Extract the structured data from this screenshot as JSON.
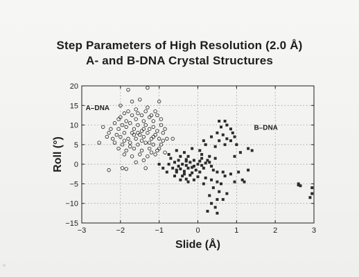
{
  "page": {
    "margin_mark": "¹¹"
  },
  "chart_data": {
    "type": "scatter",
    "title": "Step Parameters of High Resolution (2.0 Å)",
    "subtitle": "A- and B-DNA Crystal Structures",
    "xlabel": "Slide (Å)",
    "ylabel": "Roll (°)",
    "xlim": [
      -3,
      3
    ],
    "ylim": [
      -15,
      20
    ],
    "xticks": [
      -3,
      -2,
      -1,
      0,
      1,
      2,
      3
    ],
    "yticks": [
      -15,
      -10,
      -5,
      0,
      5,
      10,
      15,
      20
    ],
    "xtick_labels": [
      "−3",
      "−2",
      "−1",
      "0",
      "1",
      "2",
      "3"
    ],
    "ytick_labels": [
      "−15",
      "−10",
      "−5",
      "0",
      "5",
      "10",
      "15",
      "20"
    ],
    "grid": "dotted",
    "annotations": [
      {
        "text": "A–DNA",
        "x": -2.9,
        "y": 14.5
      },
      {
        "text": "B–DNA",
        "x": 1.45,
        "y": 9.5
      }
    ],
    "series": [
      {
        "marker": "open-circle",
        "color": "#1d1d1d",
        "points": [
          [
            -1.8,
            19
          ],
          [
            -1.3,
            19.5
          ],
          [
            -1.7,
            16
          ],
          [
            -1.5,
            16.5
          ],
          [
            -1.0,
            16
          ],
          [
            -1.3,
            14.5
          ],
          [
            -2.0,
            15
          ],
          [
            -1.6,
            14
          ],
          [
            -1.1,
            13.5
          ],
          [
            -1.9,
            13
          ],
          [
            -1.7,
            12.5
          ],
          [
            -1.45,
            12.5
          ],
          [
            -1.25,
            12
          ],
          [
            -1.05,
            12.5
          ],
          [
            -2.05,
            11.5
          ],
          [
            -1.85,
            11
          ],
          [
            -1.6,
            11.5
          ],
          [
            -1.4,
            11
          ],
          [
            -1.15,
            11
          ],
          [
            -0.95,
            11.5
          ],
          [
            -2.15,
            10.5
          ],
          [
            -1.95,
            10
          ],
          [
            -1.75,
            10.5
          ],
          [
            -1.55,
            10
          ],
          [
            -1.35,
            10
          ],
          [
            -1.15,
            9.5
          ],
          [
            -0.95,
            10
          ],
          [
            -2.25,
            9
          ],
          [
            -2.05,
            9
          ],
          [
            -1.85,
            9.5
          ],
          [
            -1.65,
            9
          ],
          [
            -1.45,
            8.5
          ],
          [
            -1.25,
            9
          ],
          [
            -1.05,
            8.5
          ],
          [
            -0.85,
            9
          ],
          [
            -2.3,
            8
          ],
          [
            -2.1,
            7.5
          ],
          [
            -1.9,
            8
          ],
          [
            -1.7,
            8
          ],
          [
            -1.5,
            7.5
          ],
          [
            -1.3,
            8
          ],
          [
            -1.1,
            7.5
          ],
          [
            -0.9,
            8
          ],
          [
            -2.2,
            6.5
          ],
          [
            -2.0,
            7
          ],
          [
            -1.8,
            6.5
          ],
          [
            -1.6,
            6.5
          ],
          [
            -1.4,
            7
          ],
          [
            -1.2,
            6.5
          ],
          [
            -1.0,
            6.5
          ],
          [
            -0.8,
            6.5
          ],
          [
            -2.15,
            5.5
          ],
          [
            -1.95,
            5
          ],
          [
            -1.75,
            5.5
          ],
          [
            -1.55,
            5
          ],
          [
            -1.35,
            5.5
          ],
          [
            -1.15,
            5
          ],
          [
            -0.95,
            5
          ],
          [
            -2.05,
            4
          ],
          [
            -1.85,
            3.5
          ],
          [
            -1.65,
            4
          ],
          [
            -1.45,
            3.5
          ],
          [
            -1.25,
            4
          ],
          [
            -1.05,
            3.5
          ],
          [
            -1.9,
            2.5
          ],
          [
            -1.7,
            2
          ],
          [
            -1.5,
            2.5
          ],
          [
            -1.3,
            2
          ],
          [
            -1.1,
            2.5
          ],
          [
            -1.6,
            0.5
          ],
          [
            -1.4,
            1
          ],
          [
            -1.8,
            13.5
          ],
          [
            -1.55,
            13
          ],
          [
            -1.35,
            13.5
          ],
          [
            -1.2,
            12.5
          ],
          [
            -2.0,
            12
          ],
          [
            -1.65,
            7.5
          ],
          [
            -1.45,
            6
          ],
          [
            -1.25,
            5.5
          ],
          [
            -1.75,
            4.5
          ],
          [
            -1.2,
            3
          ],
          [
            -1.0,
            4
          ],
          [
            -2.55,
            5.5
          ],
          [
            -2.3,
            -1.5
          ],
          [
            -1.95,
            -1
          ],
          [
            -1.85,
            -1.2
          ],
          [
            -1.35,
            -1
          ],
          [
            -0.65,
            6.5
          ],
          [
            -0.85,
            3
          ],
          [
            -2.35,
            7
          ],
          [
            -2.45,
            9.5
          ],
          [
            -1.9,
            6
          ],
          [
            -1.55,
            8
          ],
          [
            -1.4,
            9
          ],
          [
            -1.15,
            7
          ],
          [
            -0.9,
            6
          ]
        ]
      },
      {
        "marker": "filled-square",
        "color": "#2c2c2c",
        "points": [
          [
            0.55,
            11
          ],
          [
            0.7,
            11
          ],
          [
            0.75,
            10
          ],
          [
            0.6,
            9.5
          ],
          [
            0.85,
            9
          ],
          [
            0.5,
            8
          ],
          [
            0.9,
            8
          ],
          [
            0.65,
            7.5
          ],
          [
            0.95,
            7
          ],
          [
            0.35,
            7
          ],
          [
            0.75,
            6.5
          ],
          [
            0.55,
            6
          ],
          [
            0.85,
            6
          ],
          [
            1.0,
            5
          ],
          [
            0.45,
            4.5
          ],
          [
            0.7,
            5
          ],
          [
            1.3,
            4
          ],
          [
            1.4,
            3.5
          ],
          [
            1.1,
            3
          ],
          [
            0.2,
            5
          ],
          [
            0.15,
            6
          ],
          [
            0.05,
            3.5
          ],
          [
            -0.15,
            4
          ],
          [
            -0.35,
            3
          ],
          [
            -0.55,
            3.5
          ],
          [
            -0.75,
            2.5
          ],
          [
            -0.25,
            2
          ],
          [
            -0.45,
            2
          ],
          [
            0.1,
            2.5
          ],
          [
            0.3,
            2
          ],
          [
            0.95,
            2
          ],
          [
            -0.7,
            1.5
          ],
          [
            -0.5,
            1
          ],
          [
            -0.3,
            1.2
          ],
          [
            -0.1,
            1
          ],
          [
            0.1,
            1.5
          ],
          [
            0.25,
            1
          ],
          [
            -0.6,
            0.5
          ],
          [
            -0.4,
            0
          ],
          [
            -0.2,
            0.5
          ],
          [
            0.0,
            0
          ],
          [
            0.2,
            0.3
          ],
          [
            -0.75,
            0
          ],
          [
            -0.5,
            -0.5
          ],
          [
            -0.3,
            -0.3
          ],
          [
            -0.1,
            -0.5
          ],
          [
            0.1,
            -0.3
          ],
          [
            -0.65,
            -1
          ],
          [
            -0.45,
            -1.2
          ],
          [
            -0.25,
            -1
          ],
          [
            -0.05,
            -1.5
          ],
          [
            0.15,
            -1
          ],
          [
            -0.55,
            -2
          ],
          [
            -0.35,
            -1.8
          ],
          [
            -0.15,
            -2.2
          ],
          [
            0.05,
            -2
          ],
          [
            -0.4,
            -3
          ],
          [
            -0.2,
            -2.8
          ],
          [
            0.0,
            -3.2
          ],
          [
            -0.6,
            -3
          ],
          [
            -0.3,
            -3.8
          ],
          [
            -0.1,
            -4
          ],
          [
            0.2,
            -3.5
          ],
          [
            -0.9,
            -1
          ],
          [
            -1.0,
            0
          ],
          [
            -0.8,
            -2
          ],
          [
            0.4,
            -1.5
          ],
          [
            0.5,
            -2
          ],
          [
            0.35,
            -4
          ],
          [
            0.5,
            -4.5
          ],
          [
            0.65,
            -2
          ],
          [
            0.7,
            -3
          ],
          [
            0.85,
            -2.5
          ],
          [
            0.6,
            -5
          ],
          [
            0.4,
            -6
          ],
          [
            0.55,
            -7
          ],
          [
            0.75,
            -7.5
          ],
          [
            0.3,
            -8
          ],
          [
            0.5,
            -9
          ],
          [
            0.65,
            -9
          ],
          [
            0.35,
            -10
          ],
          [
            0.45,
            -11
          ],
          [
            0.5,
            -12.5
          ],
          [
            0.25,
            -12
          ],
          [
            0.95,
            -4.5
          ],
          [
            1.15,
            -4
          ],
          [
            1.05,
            -2
          ],
          [
            1.3,
            -1.5
          ],
          [
            1.2,
            -4.5
          ],
          [
            -0.45,
            -4
          ],
          [
            -0.25,
            -4.5
          ],
          [
            0.15,
            -5
          ],
          [
            -0.3,
            0.8
          ],
          [
            -0.15,
            -0.8
          ],
          [
            0.05,
            0.8
          ],
          [
            -0.35,
            -2.5
          ],
          [
            -0.55,
            -1.5
          ],
          [
            0.3,
            0.5
          ],
          [
            0.45,
            1.5
          ],
          [
            0.35,
            -0.5
          ],
          [
            2.6,
            -5
          ],
          [
            2.65,
            -5.5
          ],
          [
            2.95,
            -6
          ],
          [
            2.95,
            -7.5
          ],
          [
            2.9,
            -8.5
          ],
          [
            2.6,
            -5.3
          ]
        ]
      }
    ]
  }
}
